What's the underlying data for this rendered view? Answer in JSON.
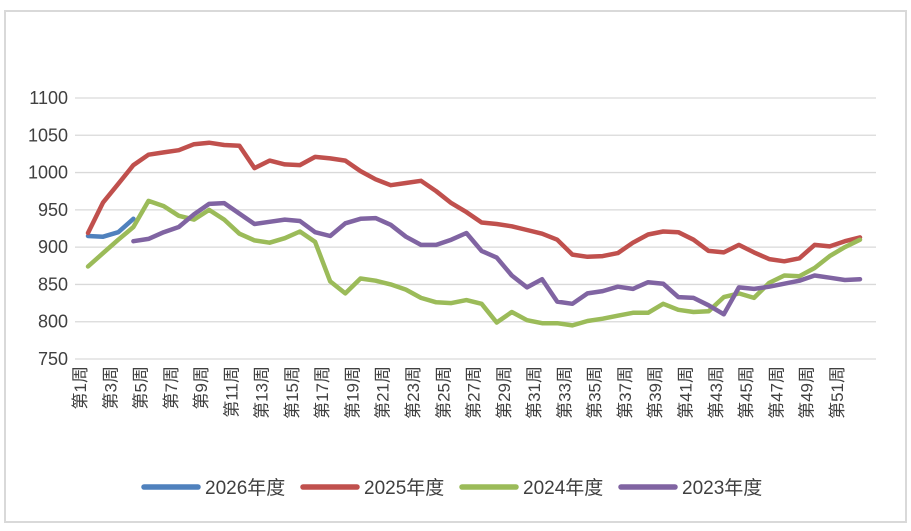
{
  "chart_data": {
    "type": "line",
    "title": "",
    "xlabel": "",
    "ylabel": "",
    "ylim": [
      750,
      1100
    ],
    "y_ticks": [
      750,
      800,
      850,
      900,
      950,
      1000,
      1050,
      1100
    ],
    "x_tick_step": 2,
    "grid": true,
    "legend_position": "bottom",
    "x_categories": [
      "第1周",
      "第2周",
      "第3周",
      "第4周",
      "第5周",
      "第6周",
      "第7周",
      "第8周",
      "第9周",
      "第10周",
      "第11周",
      "第12周",
      "第13周",
      "第14周",
      "第15周",
      "第16周",
      "第17周",
      "第18周",
      "第19周",
      "第20周",
      "第21周",
      "第22周",
      "第23周",
      "第24周",
      "第25周",
      "第26周",
      "第27周",
      "第28周",
      "第29周",
      "第30周",
      "第31周",
      "第32周",
      "第33周",
      "第34周",
      "第35周",
      "第36周",
      "第37周",
      "第38周",
      "第39周",
      "第40周",
      "第41周",
      "第42周",
      "第43周",
      "第44周",
      "第45周",
      "第46周",
      "第47周",
      "第48周",
      "第49周",
      "第50周",
      "第51周",
      "第52周"
    ],
    "series": [
      {
        "name": "2026年度",
        "color": "#4F81BD",
        "start_week": 1,
        "values": [
          915,
          914,
          920,
          938
        ]
      },
      {
        "name": "2025年度",
        "color": "#C0504D",
        "start_week": 1,
        "values": [
          919,
          960,
          985,
          1010,
          1024,
          1027,
          1030,
          1038,
          1040,
          1037,
          1036,
          1006,
          1016,
          1011,
          1010,
          1021,
          1019,
          1016,
          1002,
          991,
          983,
          986,
          989,
          975,
          959,
          947,
          933,
          931,
          928,
          923,
          918,
          910,
          890,
          887,
          888,
          892,
          906,
          917,
          921,
          920,
          910,
          895,
          893,
          903,
          893,
          884,
          881,
          885,
          903,
          901,
          908,
          913
        ]
      },
      {
        "name": "2024年度",
        "color": "#9BBB59",
        "start_week": 1,
        "values": [
          874,
          892,
          910,
          927,
          962,
          955,
          942,
          937,
          950,
          937,
          918,
          909,
          906,
          912,
          921,
          907,
          854,
          838,
          858,
          855,
          850,
          843,
          832,
          826,
          825,
          829,
          824,
          799,
          813,
          802,
          798,
          798,
          795,
          801,
          804,
          808,
          812,
          812,
          824,
          816,
          813,
          814,
          833,
          838,
          832,
          852,
          862,
          861,
          872,
          888,
          900,
          910
        ]
      },
      {
        "name": "2023年度",
        "color": "#8064A2",
        "start_week": 4,
        "values": [
          908,
          911,
          920,
          927,
          944,
          958,
          959,
          945,
          931,
          934,
          937,
          935,
          920,
          915,
          932,
          938,
          939,
          930,
          914,
          903,
          903,
          910,
          919,
          895,
          886,
          862,
          846,
          857,
          827,
          824,
          838,
          841,
          847,
          844,
          853,
          851,
          833,
          832,
          822,
          810,
          846,
          844,
          847,
          851,
          855,
          862,
          859,
          856,
          857
        ]
      }
    ],
    "legend_items": [
      "2026年度",
      "2025年度",
      "2024年度",
      "2023年度"
    ]
  },
  "style": {
    "background": "#FFFFFF",
    "frame_color": "#D9D9D9",
    "grid_color": "#D9D9D9",
    "text_color": "#404040",
    "line_width": 4.5
  }
}
